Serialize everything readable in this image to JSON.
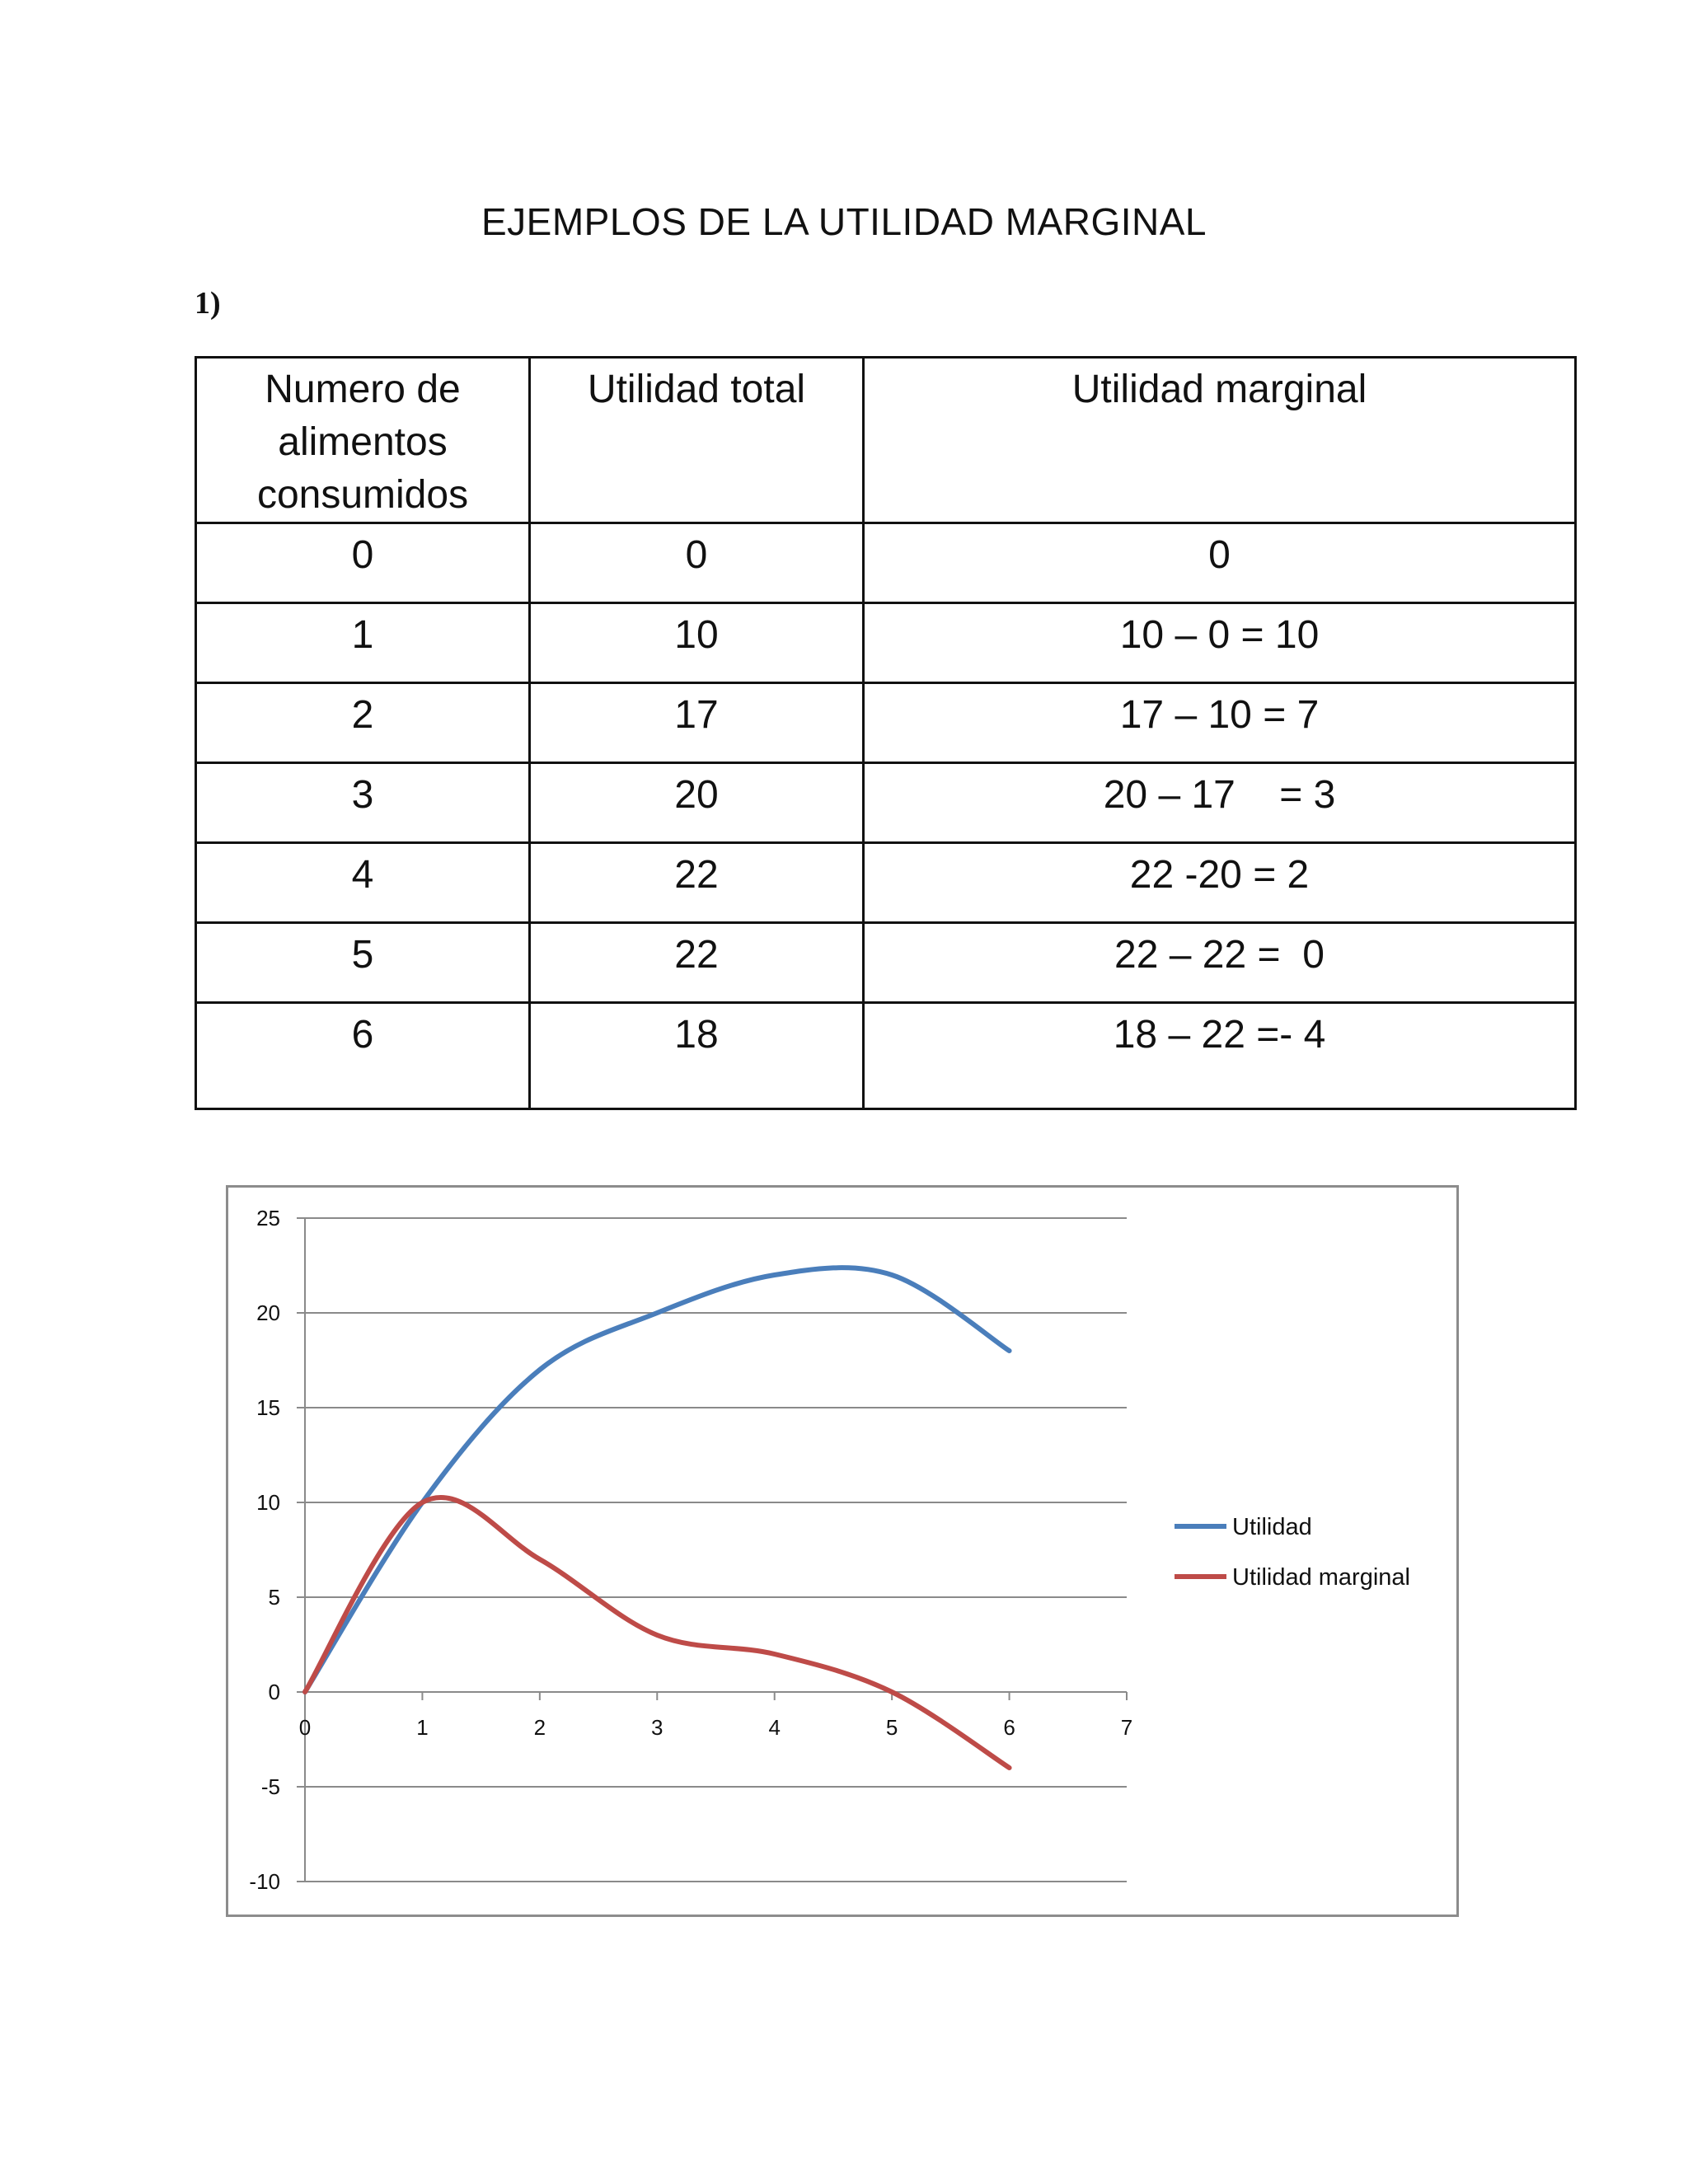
{
  "title": "EJEMPLOS DE LA UTILIDAD MARGINAL",
  "section_number": "1)",
  "table": {
    "headers": [
      "Numero de alimentos consumidos",
      "Utilidad total",
      "Utilidad marginal"
    ],
    "rows": [
      [
        "0",
        "0",
        "0"
      ],
      [
        "1",
        "10",
        "10 – 0 = 10"
      ],
      [
        "2",
        "17",
        "17 – 10 = 7"
      ],
      [
        "3",
        "20",
        "20 – 17    = 3"
      ],
      [
        "4",
        "22",
        "22 -20 = 2"
      ],
      [
        "5",
        "22",
        "22 – 22 =  0"
      ],
      [
        "6",
        "18",
        "18 – 22 =- 4"
      ]
    ]
  },
  "chart_data": {
    "type": "line",
    "smoothed": true,
    "title": "",
    "xlabel": "",
    "ylabel": "",
    "x_ticks": [
      "0",
      "1",
      "2",
      "3",
      "4",
      "5",
      "6",
      "7"
    ],
    "y_ticks": [
      "25",
      "20",
      "15",
      "10",
      "5",
      "0",
      "-5",
      "-10"
    ],
    "xlim": [
      0,
      7
    ],
    "ylim": [
      -10,
      25
    ],
    "grid": "horizontal",
    "legend_position": "right",
    "series": [
      {
        "name": "Utilidad",
        "color": "#4a7ebb",
        "x": [
          0,
          1,
          2,
          3,
          4,
          5,
          6
        ],
        "y": [
          0,
          10,
          17,
          20,
          22,
          22,
          18
        ]
      },
      {
        "name": "Utilidad marginal",
        "color": "#be4b48",
        "x": [
          0,
          1,
          2,
          3,
          4,
          5,
          6
        ],
        "y": [
          0,
          10,
          7,
          3,
          2,
          0,
          -4
        ]
      }
    ]
  }
}
